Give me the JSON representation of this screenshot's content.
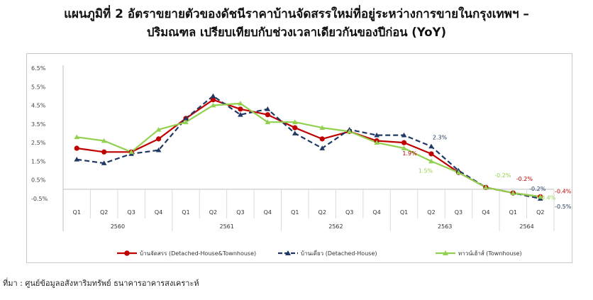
{
  "title_line1": "แผนภูมิที่ 2 อัตราขยายตัวของดัชนีราคาบ้านจัดสรรใหม่ที่อยู่ระหว่างการขายในกรุงเทพฯ –",
  "title_line2": "ปริมณฑล เปรียบเทียบกับช่วงเวลาเดียวกันของปีก่อน (YoY)",
  "source": "ที่มา : ศูนย์ข้อมูลอสังหาริมทรัพย์ ธนาคารอาคารสงเคราะห์",
  "chart_data": {
    "type": "line",
    "title": "",
    "xlabel": "",
    "ylabel": "",
    "ylim": [
      -0.5,
      6.5
    ],
    "yticks": [
      "6.5%",
      "5.5%",
      "4.5%",
      "3.5%",
      "2.5%",
      "1.5%",
      "0.5%",
      "-0.5%"
    ],
    "ytick_values": [
      6.5,
      5.5,
      4.5,
      3.5,
      2.5,
      1.5,
      0.5,
      -0.5
    ],
    "quarters": [
      "Q1",
      "Q2",
      "Q3",
      "Q4",
      "Q1",
      "Q2",
      "Q3",
      "Q4",
      "Q1",
      "Q2",
      "Q3",
      "Q4",
      "Q1",
      "Q2",
      "Q3",
      "Q4",
      "Q1",
      "Q2"
    ],
    "years": [
      {
        "label": "2560",
        "span": 4
      },
      {
        "label": "2561",
        "span": 4
      },
      {
        "label": "2562",
        "span": 4
      },
      {
        "label": "2563",
        "span": 4
      },
      {
        "label": "2564",
        "span": 2
      }
    ],
    "grid": false,
    "legend_position": "bottom",
    "series": [
      {
        "name": "บ้านจัดสรร (Detached-House&Townhouse)",
        "color": "#c00000",
        "marker": "circle",
        "dash": false,
        "values": [
          2.2,
          2.0,
          2.0,
          2.7,
          3.8,
          4.8,
          4.3,
          4.0,
          3.3,
          2.7,
          3.1,
          2.6,
          2.5,
          1.9,
          0.9,
          0.1,
          -0.2,
          -0.4
        ]
      },
      {
        "name": "บ้านเดี่ยว (Detached-House)",
        "color": "#1f3864",
        "marker": "triangle",
        "dash": true,
        "values": [
          1.6,
          1.4,
          1.9,
          2.1,
          3.8,
          5.0,
          4.0,
          4.3,
          3.0,
          2.2,
          3.2,
          2.9,
          2.9,
          2.3,
          1.0,
          0.1,
          -0.2,
          -0.5
        ]
      },
      {
        "name": "ทาวน์เฮ้าส์ (Townhouse)",
        "color": "#92d050",
        "marker": "triangle",
        "dash": false,
        "values": [
          2.8,
          2.6,
          2.0,
          3.2,
          3.6,
          4.5,
          4.6,
          3.6,
          3.6,
          3.3,
          3.1,
          2.5,
          2.2,
          1.5,
          0.9,
          0.1,
          -0.2,
          -0.4
        ]
      }
    ],
    "annotations": [
      {
        "text": "2.3%",
        "series": 1,
        "index": 13,
        "color": "#1f3864",
        "dx": 12,
        "dy": -10
      },
      {
        "text": "1.9%",
        "series": 0,
        "index": 12,
        "color": "#c00000",
        "dx": 8,
        "dy": 18
      },
      {
        "text": "1.5%",
        "series": 2,
        "index": 13,
        "color": "#92d050",
        "dx": -8,
        "dy": 16
      },
      {
        "text": "-0.2%",
        "series": 2,
        "index": 15,
        "color": "#92d050",
        "dx": 24,
        "dy": -14
      },
      {
        "text": "-0.2%",
        "series": 0,
        "index": 16,
        "color": "#c00000",
        "dx": 16,
        "dy": -17
      },
      {
        "text": "-0.2%",
        "series": 1,
        "index": 17,
        "color": "#1f3864",
        "dx": -4,
        "dy": -11
      },
      {
        "text": "-0.4%",
        "series": 0,
        "index": 17,
        "color": "#c00000",
        "dx": 32,
        "dy": -5
      },
      {
        "text": "-0.4%",
        "series": 2,
        "index": 17,
        "color": "#92d050",
        "dx": 10,
        "dy": 4
      },
      {
        "text": "-0.5%",
        "series": 1,
        "index": 17,
        "color": "#1f3864",
        "dx": 32,
        "dy": 14
      }
    ]
  }
}
